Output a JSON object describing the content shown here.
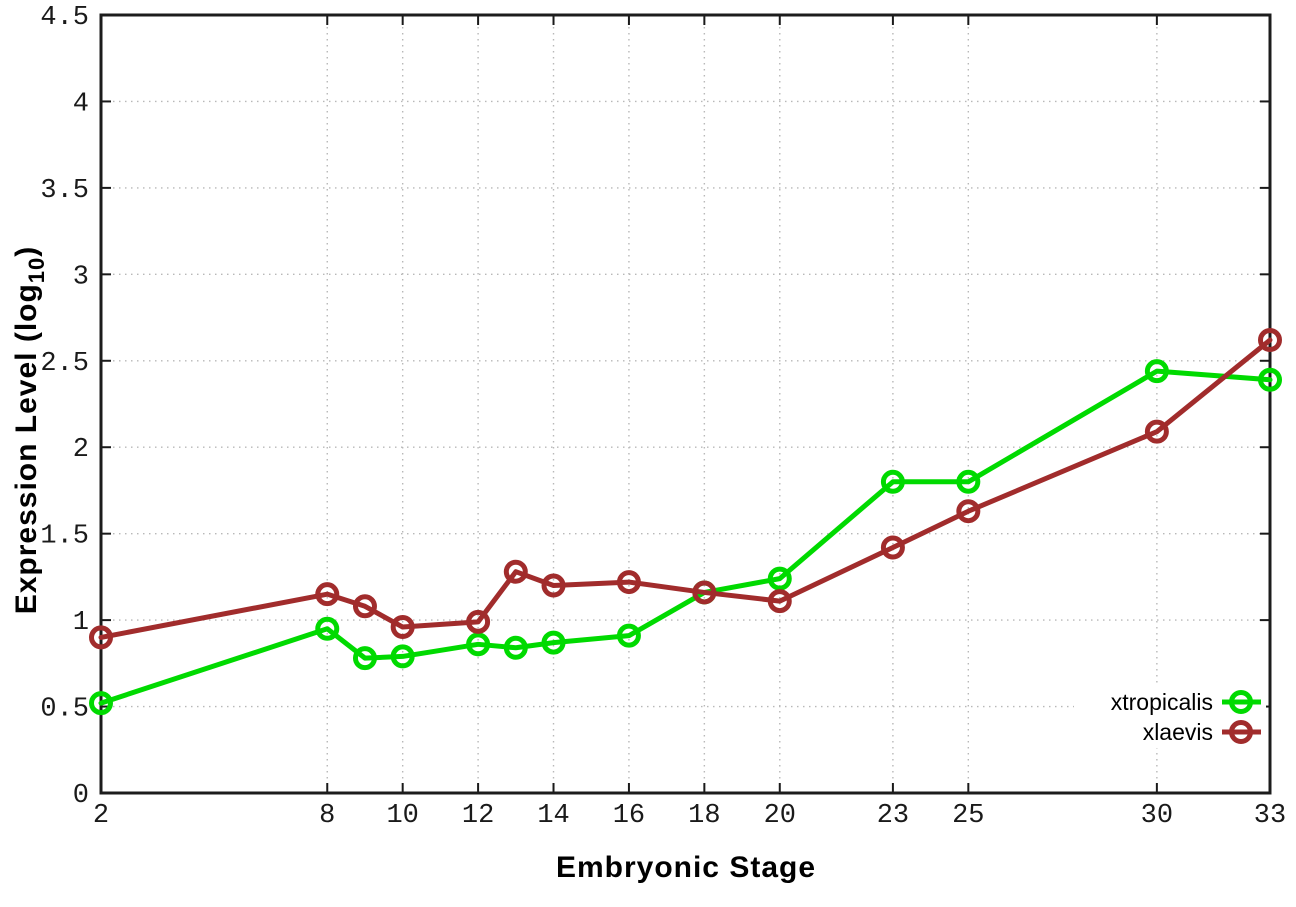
{
  "figure": {
    "background": "#ffffff",
    "border_color": "#1c1c1c",
    "grid_color": "#b8b8b8",
    "tick_color": "#1a1a1a"
  },
  "chart_data": {
    "type": "line",
    "title": "",
    "xlabel": "Embryonic Stage",
    "ylabel": "Expression Level (log10)",
    "ylabel_parts": {
      "main": "Expression Level (log",
      "sub": "10",
      "close": ")"
    },
    "x_range": [
      2,
      33
    ],
    "ylim": [
      0,
      4.5
    ],
    "x_ticks": [
      2,
      8,
      10,
      12,
      14,
      16,
      18,
      20,
      23,
      25,
      30,
      33
    ],
    "y_ticks": [
      "0",
      "0.5",
      "1",
      "1.5",
      "2",
      "2.5",
      "3",
      "3.5",
      "4",
      "4.5"
    ],
    "grid": true,
    "legend_position": "inside-right-bottom",
    "x": [
      2,
      8,
      9,
      10,
      12,
      13,
      14,
      16,
      18,
      20,
      23,
      25,
      30,
      33
    ],
    "series": [
      {
        "name": "xtropicalis",
        "color": "#00DA00",
        "values": [
          0.52,
          0.95,
          0.78,
          0.79,
          0.86,
          0.84,
          0.87,
          0.91,
          1.16,
          1.24,
          1.8,
          1.8,
          2.44,
          2.39
        ]
      },
      {
        "name": "xlaevis",
        "color": "#A12C2C",
        "values": [
          0.9,
          1.15,
          1.08,
          0.96,
          0.99,
          1.28,
          1.2,
          1.22,
          1.16,
          1.11,
          1.42,
          1.63,
          2.09,
          2.62
        ]
      }
    ]
  }
}
